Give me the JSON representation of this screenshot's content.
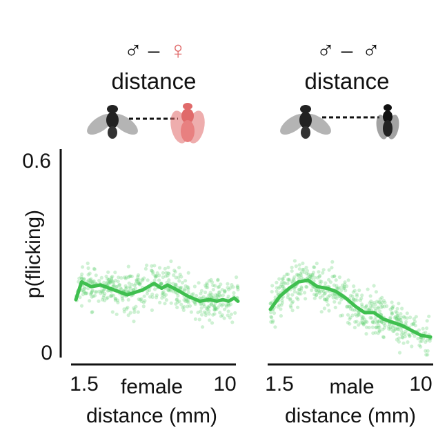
{
  "panels": [
    {
      "symbols": {
        "left": "♂",
        "dash": "–",
        "right": "♀"
      },
      "subtitle": "distance"
    },
    {
      "symbols": {
        "left": "♂",
        "dash": "–",
        "right": "♂"
      },
      "subtitle": "distance"
    }
  ],
  "chart_data": [
    {
      "type": "scatter",
      "ylabel": "p(flicking)",
      "xlabel_line1": "female",
      "xlabel_line2": "distance (mm)",
      "x_tick_labels": [
        "1.5",
        "10"
      ],
      "y_tick_labels": [
        "0.6",
        "0"
      ],
      "xlim": [
        1.5,
        10
      ],
      "ylim": [
        0,
        0.6
      ],
      "colors": {
        "points": "#5fd06f",
        "line": "#3fbf4f",
        "female_fly": "#e06a6a"
      },
      "series": [
        {
          "type": "line",
          "x": [
            1.5,
            1.8,
            2.3,
            2.8,
            3.5,
            4.2,
            5.0,
            5.6,
            6.0,
            6.3,
            6.8,
            7.4,
            8.0,
            8.5,
            8.9,
            9.2,
            9.5,
            9.8,
            10.0
          ],
          "y": [
            0.17,
            0.225,
            0.21,
            0.215,
            0.2,
            0.185,
            0.2,
            0.22,
            0.205,
            0.215,
            0.2,
            0.18,
            0.165,
            0.17,
            0.165,
            0.17,
            0.165,
            0.175,
            0.165
          ]
        }
      ]
    },
    {
      "type": "scatter",
      "xlabel_line1": "male",
      "xlabel_line2": "distance (mm)",
      "x_tick_labels": [
        "1.5",
        "10"
      ],
      "xlim": [
        1.5,
        10
      ],
      "ylim": [
        0,
        0.6
      ],
      "colors": {
        "points": "#5fd06f",
        "line": "#3fbf4f",
        "male_fly": "#111111"
      },
      "series": [
        {
          "type": "line",
          "x": [
            1.5,
            2.0,
            2.5,
            3.0,
            3.5,
            4.0,
            4.5,
            5.0,
            5.5,
            6.0,
            6.5,
            7.0,
            7.5,
            8.0,
            8.5,
            9.0,
            9.5,
            10.0
          ],
          "y": [
            0.14,
            0.18,
            0.205,
            0.225,
            0.23,
            0.21,
            0.205,
            0.195,
            0.175,
            0.15,
            0.13,
            0.13,
            0.11,
            0.1,
            0.09,
            0.075,
            0.06,
            0.055
          ]
        }
      ]
    }
  ]
}
